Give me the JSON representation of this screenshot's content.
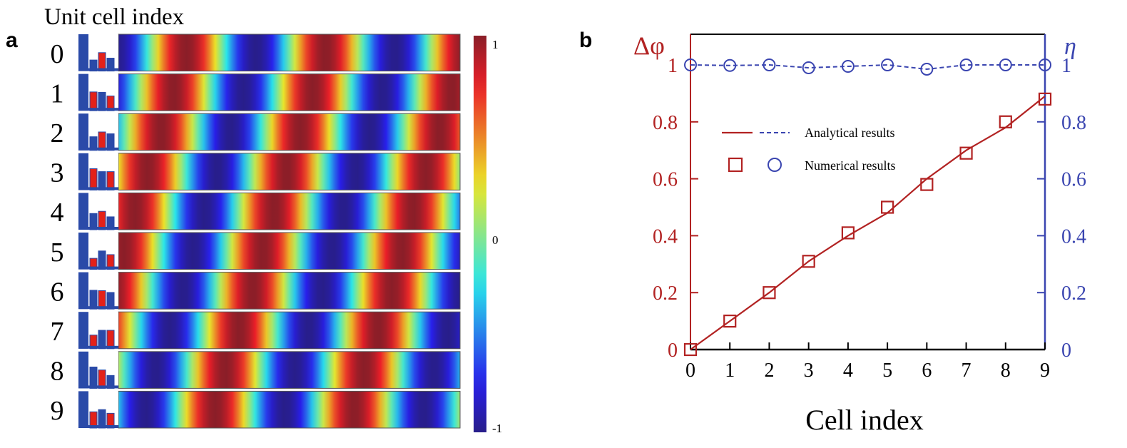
{
  "panel_labels": {
    "a": "a",
    "b": "b"
  },
  "colors": {
    "phase": "#b22222",
    "efficiency": "#3a45b0",
    "frame": "#000000"
  },
  "chart_data": [
    {
      "type": "heatmap",
      "title": "Unit cell index",
      "row_labels": [
        "0",
        "1",
        "2",
        "3",
        "4",
        "5",
        "6",
        "7",
        "8",
        "9"
      ],
      "colormap": "jet",
      "colorbar": {
        "ticks": [
          "1",
          "0",
          "-1"
        ],
        "range": [
          -1,
          1
        ]
      }
    },
    {
      "type": "line",
      "xlabel": "Cell index",
      "ylabel_left": "Δφ",
      "ylabel_right": "η",
      "x": [
        0,
        1,
        2,
        3,
        4,
        5,
        6,
        7,
        8,
        9
      ],
      "xlim": [
        0,
        9
      ],
      "ylim_left": [
        0,
        1.0
      ],
      "ylim_right": [
        0,
        1.0
      ],
      "x_ticks": [
        "0",
        "1",
        "2",
        "3",
        "4",
        "5",
        "6",
        "7",
        "8",
        "9"
      ],
      "y_ticks_left": [
        "0",
        "0.2",
        "0.4",
        "0.6",
        "0.8",
        "1"
      ],
      "y_ticks_right": [
        "0",
        "0.2",
        "0.4",
        "0.6",
        "0.8",
        "1"
      ],
      "legend": {
        "placement": "center-left",
        "entries": [
          "Analytical results",
          "Numerical results"
        ]
      },
      "series": [
        {
          "axis": "left",
          "style": "solid",
          "values": [
            0,
            0.1,
            0.2,
            0.31,
            0.4,
            0.48,
            0.6,
            0.7,
            0.78,
            0.89
          ]
        },
        {
          "axis": "left",
          "style": "square-marker",
          "values": [
            0,
            0.1,
            0.2,
            0.31,
            0.41,
            0.5,
            0.58,
            0.69,
            0.8,
            0.88
          ]
        },
        {
          "axis": "right",
          "style": "dashed",
          "values": [
            1.0,
            0.998,
            1.0,
            0.99,
            0.995,
            1.0,
            0.985,
            1.0,
            1.0,
            1.0
          ]
        },
        {
          "axis": "right",
          "style": "circle-marker",
          "values": [
            1.0,
            0.998,
            1.0,
            0.99,
            0.995,
            1.0,
            0.985,
            1.0,
            1.0,
            1.0
          ]
        }
      ]
    }
  ]
}
